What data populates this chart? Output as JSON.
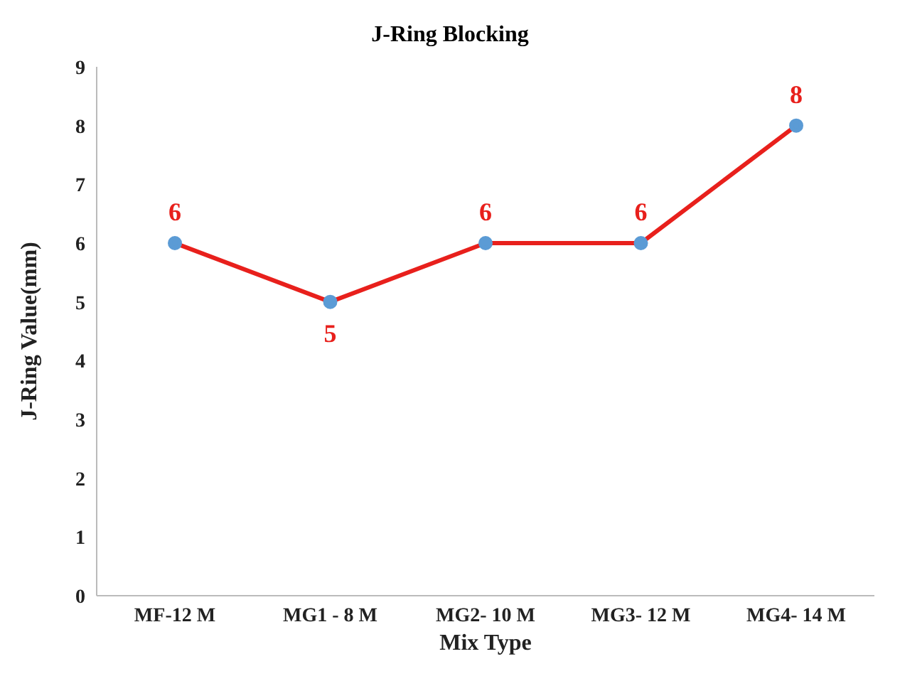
{
  "chart_data": {
    "type": "line",
    "title": "J-Ring Blocking",
    "xlabel": "Mix Type",
    "ylabel": "J-Ring Value(mm)",
    "categories": [
      "MF-12 M",
      "MG1 - 8 M",
      "MG2- 10 M",
      "MG3- 12 M",
      "MG4- 14 M"
    ],
    "series": [
      {
        "color": "#e8201c",
        "values": [
          6,
          5,
          6,
          6,
          8
        ]
      }
    ],
    "ylim": [
      0,
      9
    ],
    "yticks": [
      0,
      1,
      2,
      3,
      4,
      5,
      6,
      7,
      8,
      9
    ],
    "grid": false,
    "legend": false,
    "marker": "circle",
    "line_style": "solid",
    "data_labels": true
  }
}
